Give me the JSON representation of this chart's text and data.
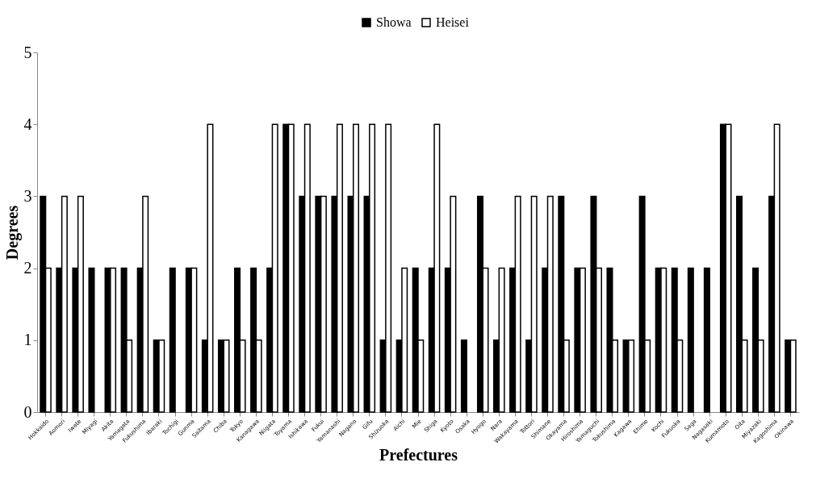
{
  "chart_data": {
    "type": "bar",
    "xlabel": "Prefectures",
    "ylabel": "Degrees",
    "categories": [
      "Hokkaido",
      "Aomori",
      "Iwate",
      "Miyagi",
      "Akita",
      "Yamagata",
      "Fukushima",
      "Ibaraki",
      "Tochigi",
      "Gunma",
      "Saitama",
      "Chiba",
      "Tokyo",
      "Kanagawa",
      "Niigata",
      "Toyama",
      "Ishikawa",
      "Fukui",
      "Yamanashi",
      "Nagano",
      "Gifu",
      "Shizuoka",
      "Aichi",
      "Mie",
      "Shiga",
      "Kyoto",
      "Osaka",
      "Hyogo",
      "Nara",
      "Wakayama",
      "Tottori",
      "Shimane",
      "Okayama",
      "Hiroshima",
      "Yamaguchi",
      "Tokushima",
      "Kagawa",
      "Ehime",
      "Kochi",
      "Fukuoka",
      "Saga",
      "Nagasaki",
      "Kumamoto",
      "Oita",
      "Miyazaki",
      "Kagoshima",
      "Okinawa"
    ],
    "series": [
      {
        "name": "Showa",
        "color": "#000000",
        "values": [
          3,
          2,
          2,
          2,
          2,
          2,
          2,
          1,
          2,
          2,
          1,
          1,
          2,
          2,
          2,
          4,
          3,
          3,
          3,
          3,
          3,
          1,
          1,
          2,
          2,
          2,
          1,
          3,
          1,
          2,
          1,
          2,
          3,
          2,
          3,
          2,
          1,
          3,
          2,
          2,
          2,
          2,
          4,
          3,
          2,
          3,
          1
        ]
      },
      {
        "name": "Heisei",
        "color": "#ffffff",
        "values": [
          2,
          3,
          3,
          null,
          2,
          1,
          3,
          1,
          null,
          2,
          4,
          1,
          1,
          1,
          4,
          4,
          4,
          3,
          4,
          4,
          4,
          4,
          2,
          1,
          4,
          3,
          null,
          2,
          2,
          3,
          3,
          3,
          1,
          2,
          2,
          1,
          1,
          1,
          2,
          1,
          null,
          null,
          4,
          1,
          1,
          4,
          1
        ]
      }
    ],
    "ylim": [
      0,
      5
    ],
    "yticks": [
      0,
      1,
      2,
      3,
      4,
      5
    ],
    "grid": false,
    "legend": "top"
  }
}
